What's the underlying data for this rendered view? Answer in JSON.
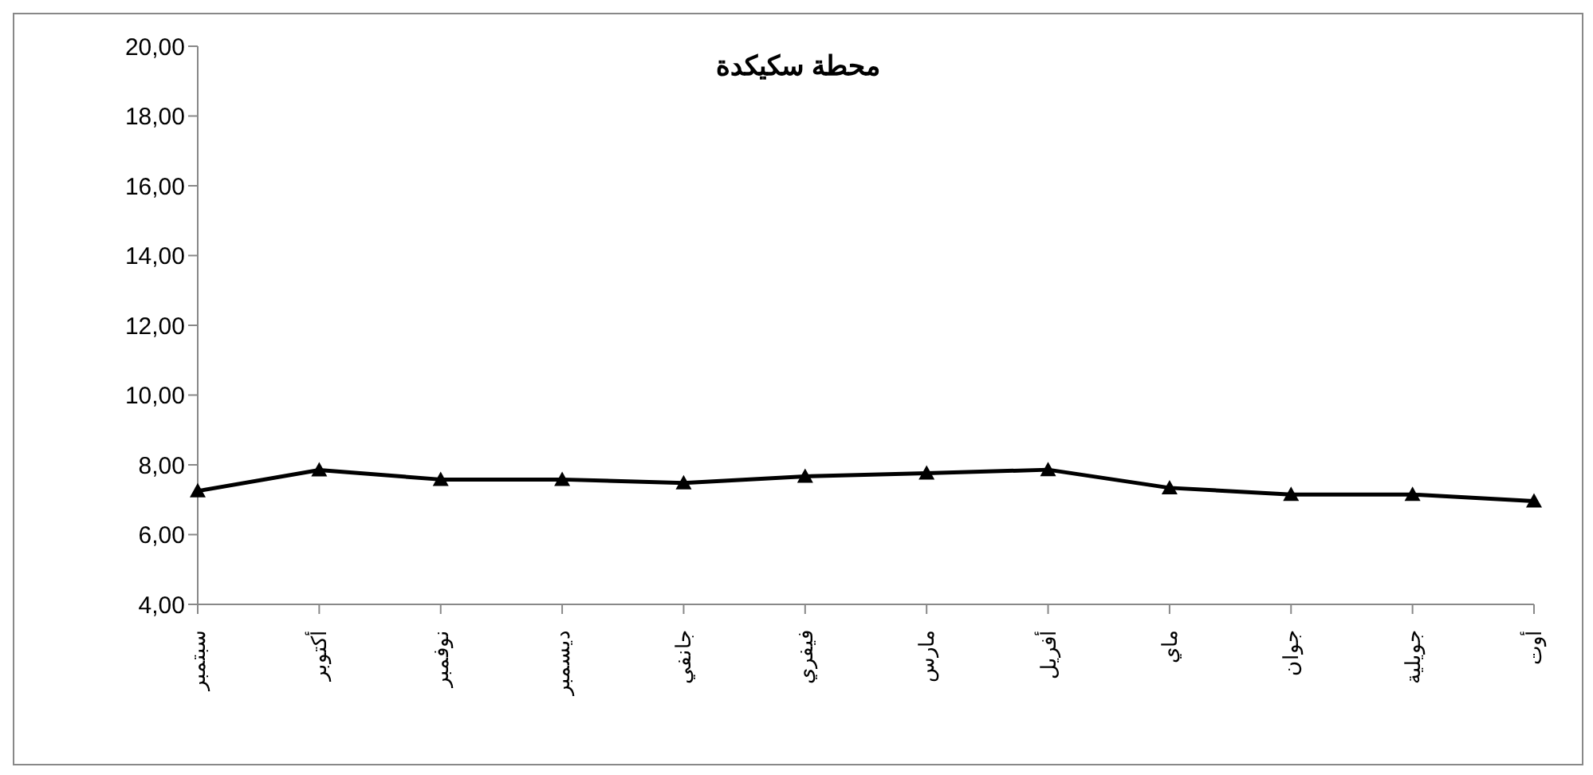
{
  "chart_data": {
    "type": "line",
    "title": "محطة سكيكدة",
    "categories": [
      "سبتمبر",
      "أكتوبر",
      "نوفمبر",
      "ديسمبر",
      "جانفي",
      "فيفري",
      "مارس",
      "أفريل",
      "ماي",
      "جوان",
      "جويلية",
      "أوت"
    ],
    "series": [
      {
        "color": "#000000",
        "values": [
          7.25,
          7.85,
          7.58,
          7.58,
          7.48,
          7.67,
          7.76,
          7.86,
          7.34,
          7.15,
          7.15,
          6.96
        ]
      }
    ],
    "ylim": [
      4,
      20
    ],
    "yticks": [
      {
        "value": 4,
        "label": "4,00"
      },
      {
        "value": 6,
        "label": "6,00"
      },
      {
        "value": 8,
        "label": "8,00"
      },
      {
        "value": 10,
        "label": "10,00"
      },
      {
        "value": 12,
        "label": "12,00"
      },
      {
        "value": 14,
        "label": "14,00"
      },
      {
        "value": 16,
        "label": "16,00"
      },
      {
        "value": 18,
        "label": "18,00"
      },
      {
        "value": 20,
        "label": "20,00"
      }
    ],
    "marker": "triangle",
    "line_style": "solid",
    "grid": false,
    "legend": false
  }
}
